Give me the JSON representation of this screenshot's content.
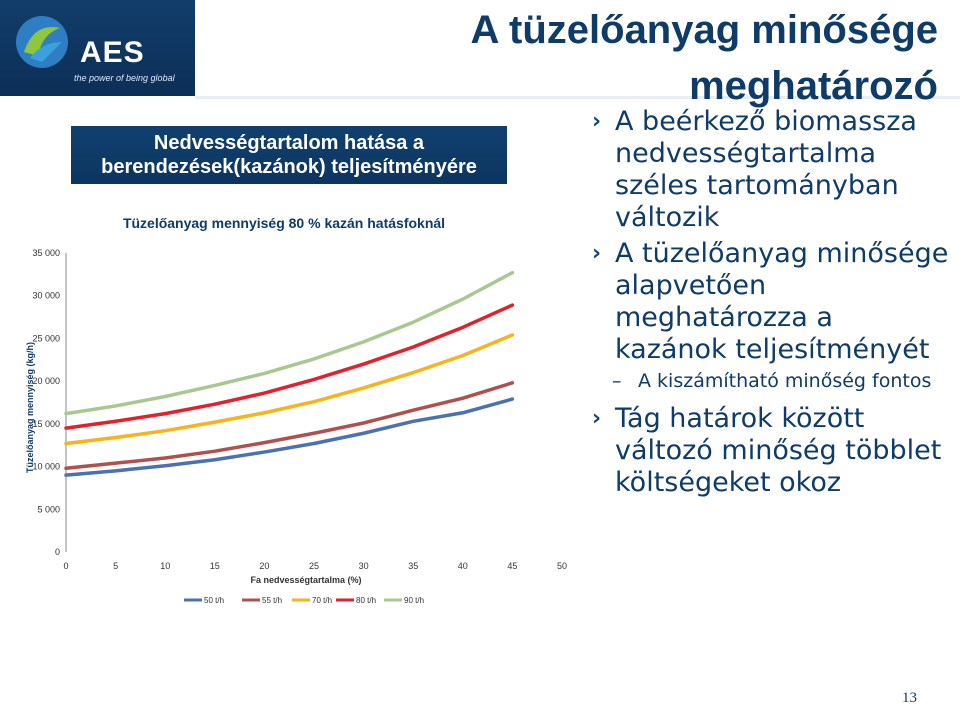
{
  "logo": {
    "name": "AES",
    "tagline": "the power of being global"
  },
  "slide": {
    "title": "A tüzelőanyag minősége meghatározó",
    "page_number": "13"
  },
  "chart_caption": "Nedvességtartalom hatása a berendezések(kazánok) teljesítményére",
  "bullets": [
    {
      "text": "A beérkező biomassza nedvességtartalma széles tartományban változik"
    },
    {
      "text": "A tüzelőanyag minősége alapvetően meghatározza a kazánok teljesítményét",
      "sub": "A kiszámítható minőség fontos"
    },
    {
      "text": "Tág határok között változó minőség többlet költségeket okoz"
    }
  ],
  "chart_data": {
    "type": "line",
    "title": "Tüzelőanyag mennyiség 80 % kazán hatásfoknál",
    "xlabel": "Fa nedvességtartalma (%)",
    "ylabel": "Tüzelőanyag mennyiség (kg/h)",
    "xlim": [
      0,
      50
    ],
    "ylim": [
      0,
      35000
    ],
    "x_ticks": [
      0,
      5,
      10,
      15,
      20,
      25,
      30,
      35,
      40,
      45,
      50
    ],
    "y_ticks": [
      0,
      5000,
      10000,
      15000,
      20000,
      25000,
      30000,
      35000
    ],
    "y_tick_labels": [
      "0",
      "5 000",
      "10 000",
      "15 000",
      "20 000",
      "25 000",
      "30 000",
      "35 000"
    ],
    "x": [
      0,
      5,
      10,
      15,
      20,
      25,
      30,
      35,
      40,
      45
    ],
    "series": [
      {
        "name": "50 t/h",
        "color": "#4a72b0",
        "values": [
          9000,
          9500,
          10100,
          10800,
          11700,
          12700,
          13900,
          15300,
          16300,
          17900
        ]
      },
      {
        "name": "55 t/h",
        "color": "#b0504d",
        "values": [
          9800,
          10400,
          11000,
          11800,
          12800,
          13900,
          15100,
          16600,
          18000,
          19800
        ]
      },
      {
        "name": "70 t/h",
        "color": "#f6b31a",
        "values": [
          12700,
          13400,
          14200,
          15200,
          16300,
          17600,
          19200,
          21000,
          23000,
          25400
        ]
      },
      {
        "name": "80 t/h",
        "color": "#e4202a",
        "values": [
          14500,
          15300,
          16200,
          17300,
          18600,
          20200,
          22000,
          24000,
          26300,
          28900
        ]
      },
      {
        "name": "90 t/h",
        "color": "#a8c890",
        "values": [
          16200,
          17100,
          18200,
          19500,
          20900,
          22600,
          24600,
          26900,
          29600,
          32700
        ]
      }
    ],
    "legend_position": "bottom",
    "grid": false
  }
}
